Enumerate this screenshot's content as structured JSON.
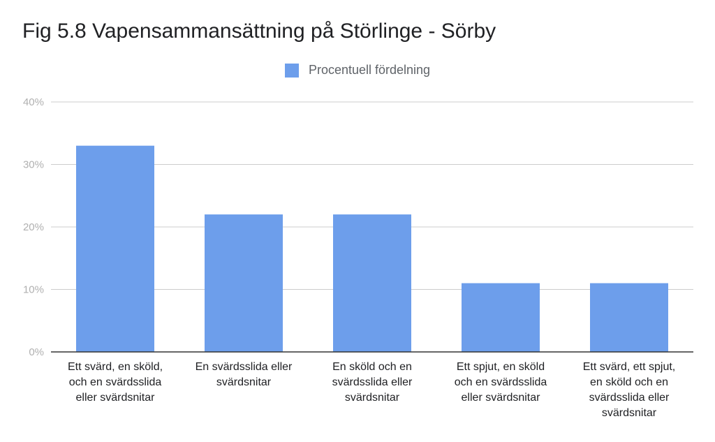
{
  "chart_data": {
    "type": "bar",
    "title": "Fig 5.8 Vapensammansättning på Störlinge - Sörby",
    "xlabel": "",
    "ylabel": "",
    "categories": [
      [
        "Ett svärd, en sköld,",
        "och en svärdsslida",
        "eller svärdsnitar"
      ],
      [
        "En svärdsslida eller",
        "svärdsnitar"
      ],
      [
        "En sköld och en",
        "svärdsslida eller",
        "svärdsnitar"
      ],
      [
        "Ett spjut, en sköld",
        "och en svärdsslida",
        "eller svärdsnitar"
      ],
      [
        "Ett svärd, ett spjut,",
        "en sköld och en",
        "svärdsslida eller",
        "svärdsnitar"
      ]
    ],
    "series": [
      {
        "name": "Procentuell fördelning",
        "values": [
          33,
          22,
          22,
          11,
          11
        ],
        "color": "#6d9eeb"
      }
    ],
    "ylim": [
      0,
      40
    ],
    "yticks": [
      0,
      10,
      20,
      30,
      40
    ],
    "ytick_labels": [
      "0%",
      "10%",
      "20%",
      "30%",
      "40%"
    ],
    "grid": true,
    "legend_position": "top"
  }
}
